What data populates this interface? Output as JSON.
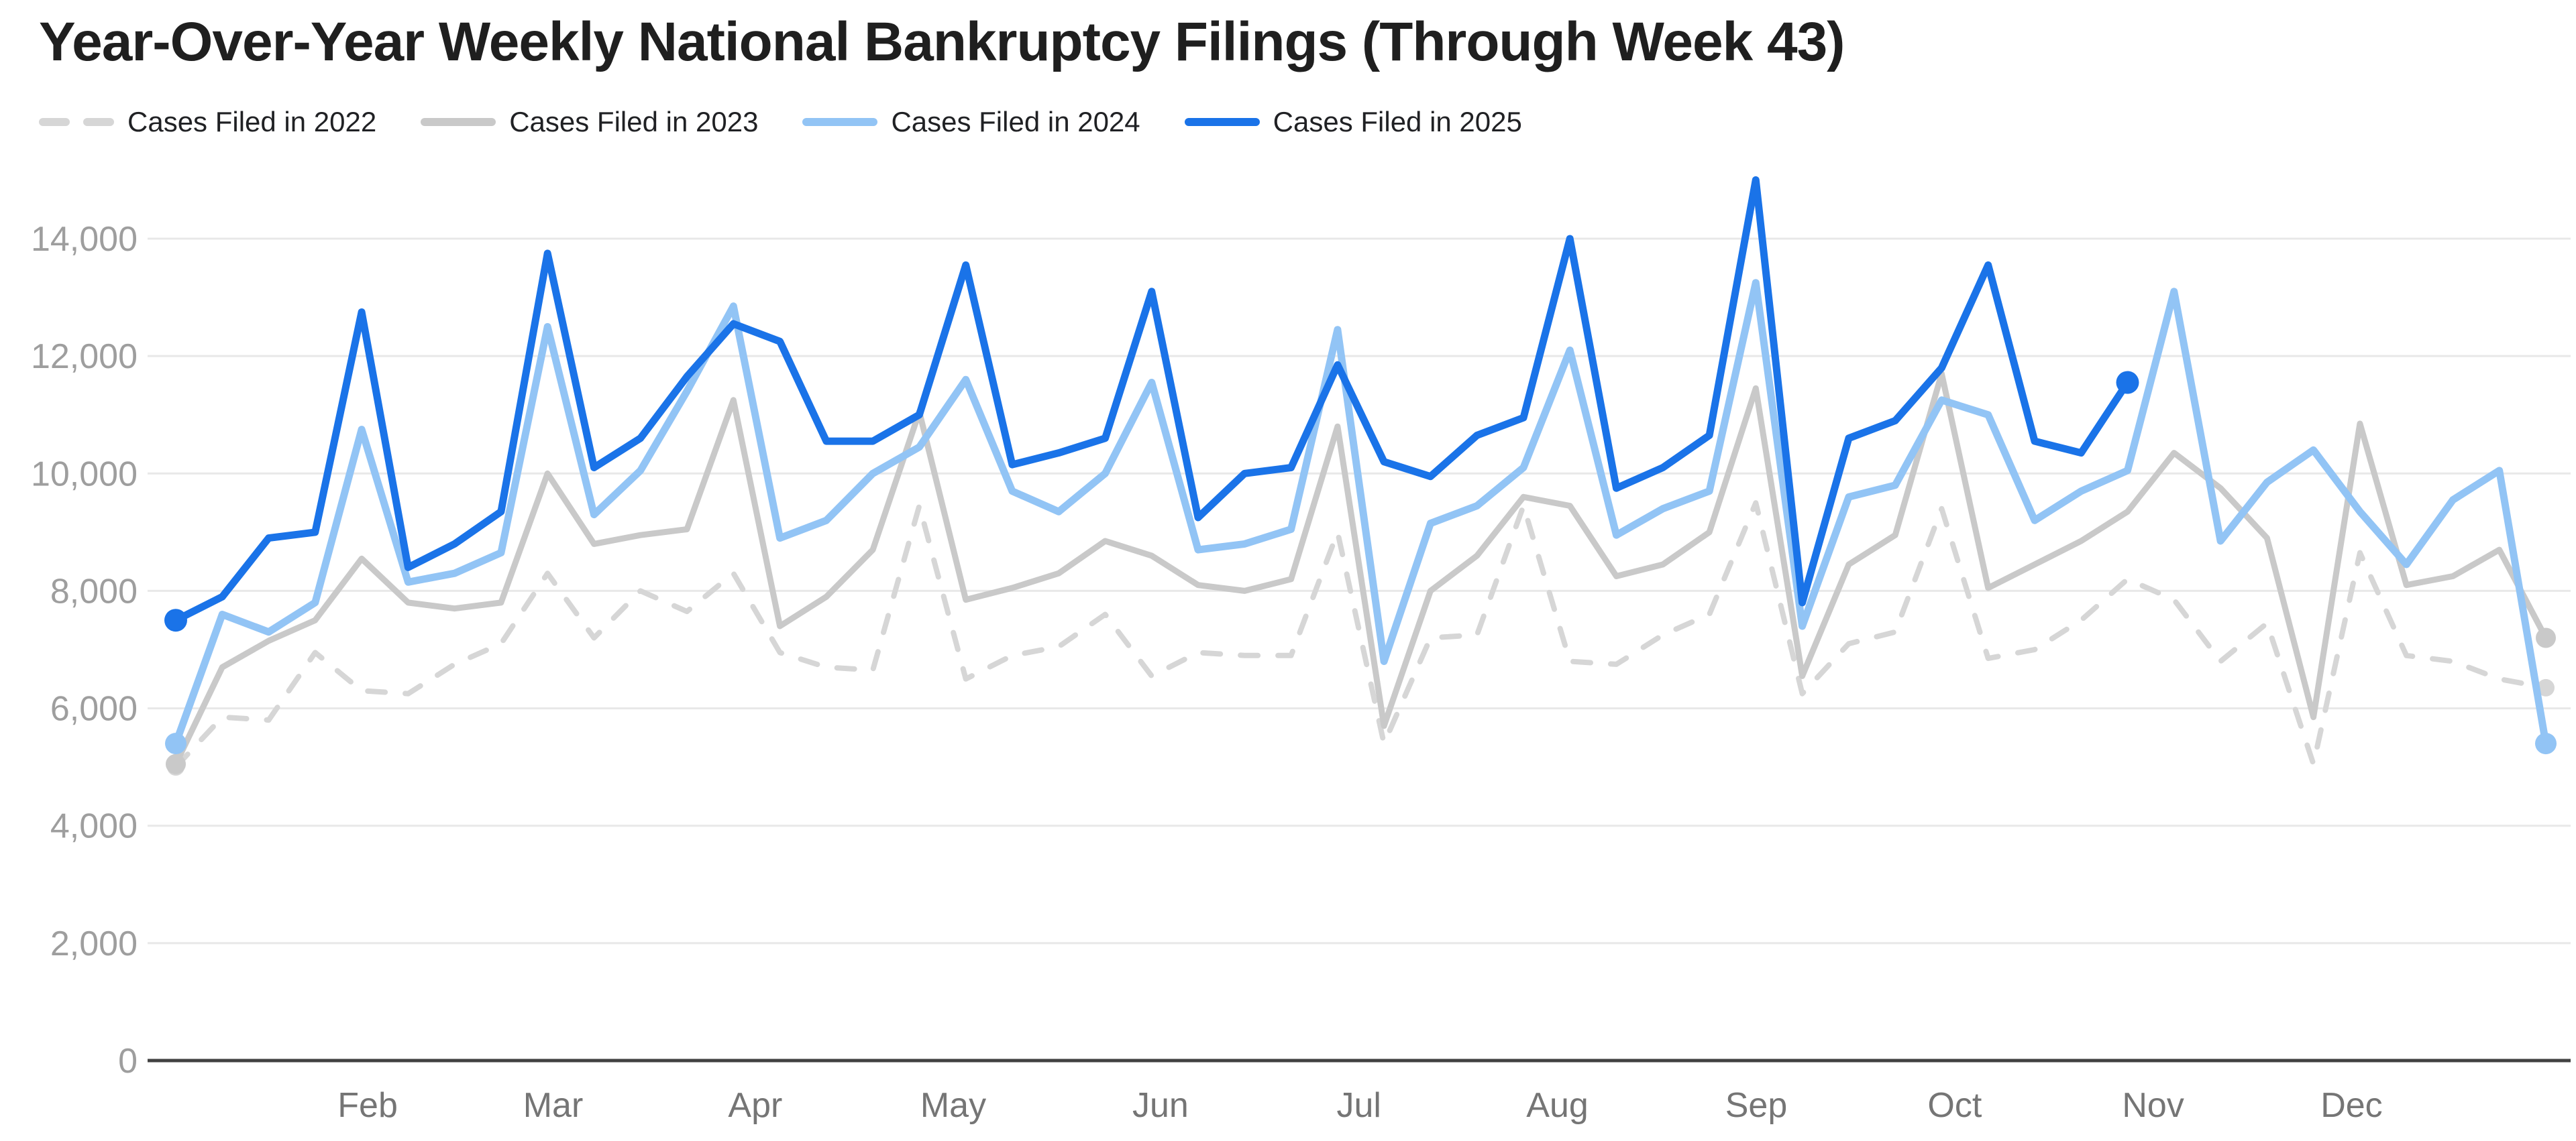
{
  "title": "Year-Over-Year Weekly National Bankruptcy Filings (Through Week 43)",
  "legend": [
    {
      "id": "cases-2022",
      "label": "Cases Filed in 2022",
      "color": "#d6d6d6",
      "dashed": true
    },
    {
      "id": "cases-2023",
      "label": "Cases Filed in 2023",
      "color": "#c9c9c9",
      "dashed": false
    },
    {
      "id": "cases-2024",
      "label": "Cases Filed in 2024",
      "color": "#92c4f5",
      "dashed": false
    },
    {
      "id": "cases-2025",
      "label": "Cases Filed in 2025",
      "color": "#1a73e8",
      "dashed": false
    }
  ],
  "chart_data": {
    "type": "line",
    "title": "Year-Over-Year Weekly National Bankruptcy Filings (Through Week 43)",
    "xlabel": "",
    "ylabel": "",
    "x_axis": {
      "unit": "week-of-year",
      "weeks": 52,
      "month_ticks": [
        {
          "label": "Feb",
          "week": 5.13
        },
        {
          "label": "Mar",
          "week": 9.12
        },
        {
          "label": "Apr",
          "week": 13.47
        },
        {
          "label": "May",
          "week": 17.73
        },
        {
          "label": "Jun",
          "week": 22.19
        },
        {
          "label": "Jul",
          "week": 26.46
        },
        {
          "label": "Aug",
          "week": 30.73
        },
        {
          "label": "Sep",
          "week": 35.01
        },
        {
          "label": "Oct",
          "week": 39.28
        },
        {
          "label": "Nov",
          "week": 43.55
        },
        {
          "label": "Dec",
          "week": 47.82
        }
      ]
    },
    "y_axis": {
      "min": 0,
      "max": 14000,
      "tick_step": 2000,
      "ticks": [
        0,
        2000,
        4000,
        6000,
        8000,
        10000,
        12000,
        14000
      ],
      "grid": true
    },
    "legend_position": "top",
    "series": [
      {
        "name": "Cases Filed in 2022",
        "color": "#d6d6d6",
        "dashed": true,
        "start_dot": true,
        "end_dot": true,
        "values": [
          5000,
          5850,
          5800,
          6950,
          6300,
          6250,
          6750,
          7100,
          8300,
          7200,
          8000,
          7650,
          8300,
          6950,
          6700,
          6650,
          9450,
          6500,
          6900,
          7050,
          7600,
          6550,
          6950,
          6900,
          6900,
          9000,
          5400,
          7200,
          7250,
          9450,
          6800,
          6750,
          7250,
          7600,
          9500,
          6250,
          7100,
          7300,
          9400,
          6850,
          7000,
          7500,
          8200,
          7850,
          6800,
          7450,
          5050,
          8650,
          6900,
          6800,
          6500,
          6350
        ]
      },
      {
        "name": "Cases Filed in 2023",
        "color": "#c9c9c9",
        "dashed": false,
        "start_dot": true,
        "end_dot": true,
        "values": [
          5050,
          6700,
          7150,
          7500,
          8550,
          7800,
          7700,
          7800,
          10000,
          8800,
          8950,
          9050,
          11250,
          7400,
          7900,
          8700,
          11050,
          7850,
          8050,
          8300,
          8850,
          8600,
          8100,
          8000,
          8200,
          10800,
          5700,
          8000,
          8600,
          9600,
          9450,
          8250,
          8450,
          9000,
          11450,
          6550,
          8450,
          8950,
          11700,
          8050,
          8450,
          8850,
          9350,
          10350,
          9750,
          8900,
          5850,
          10850,
          8100,
          8250,
          8700,
          7200
        ]
      },
      {
        "name": "Cases Filed in 2024",
        "color": "#92c4f5",
        "dashed": false,
        "start_dot": true,
        "end_dot": true,
        "values": [
          5400,
          7600,
          7300,
          7800,
          10750,
          8150,
          8300,
          8650,
          12500,
          9300,
          10050,
          11400,
          12850,
          8900,
          9200,
          10000,
          10450,
          11600,
          9700,
          9350,
          10000,
          11550,
          8700,
          8800,
          9050,
          12450,
          6800,
          9150,
          9450,
          10100,
          12100,
          8950,
          9400,
          9700,
          13250,
          7400,
          9600,
          9800,
          11250,
          11000,
          9200,
          9700,
          10050,
          13100,
          8850,
          9850,
          10400,
          9350,
          8450,
          9550,
          10050,
          5400
        ]
      },
      {
        "name": "Cases Filed in 2025",
        "color": "#1a73e8",
        "dashed": false,
        "start_dot": true,
        "end_dot": true,
        "values": [
          7500,
          7900,
          8900,
          9000,
          12750,
          8400,
          8800,
          9350,
          13750,
          10100,
          10600,
          11650,
          12550,
          12250,
          10550,
          10550,
          11000,
          13550,
          10150,
          10350,
          10600,
          13100,
          9250,
          10000,
          10100,
          11850,
          10200,
          9950,
          10650,
          10950,
          14000,
          9750,
          10100,
          10650,
          15000,
          7800,
          10600,
          10900,
          11800,
          13550,
          10550,
          10350,
          11550
        ]
      }
    ]
  }
}
